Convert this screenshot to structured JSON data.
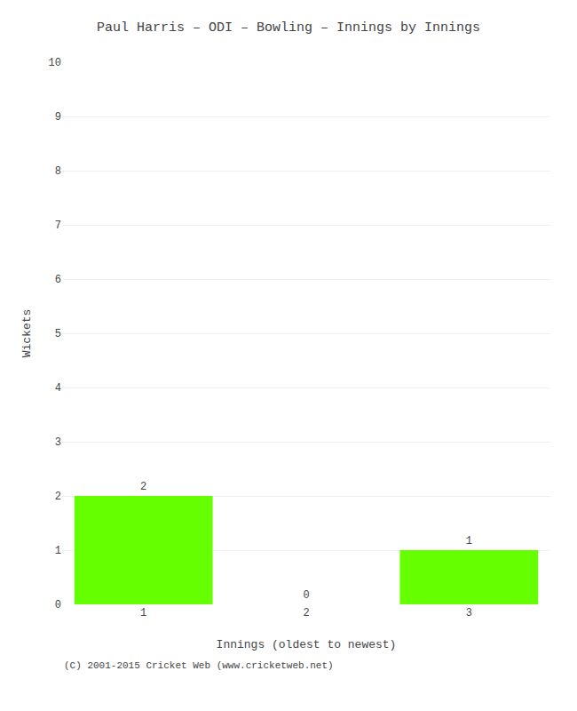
{
  "chart_data": {
    "type": "bar",
    "title": "Paul Harris – ODI – Bowling – Innings by Innings",
    "xlabel": "Innings (oldest to newest)",
    "ylabel": "Wickets",
    "categories": [
      "1",
      "2",
      "3"
    ],
    "values": [
      2,
      0,
      1
    ],
    "color": "#66ff00",
    "data_labels": true,
    "ylim": [
      0,
      10
    ],
    "yticks": [
      0,
      1,
      2,
      3,
      4,
      5,
      6,
      7,
      8,
      9,
      10
    ],
    "grid": true,
    "annotations": [
      "(C) 2001-2015 Cricket Web (www.cricketweb.net)"
    ]
  }
}
